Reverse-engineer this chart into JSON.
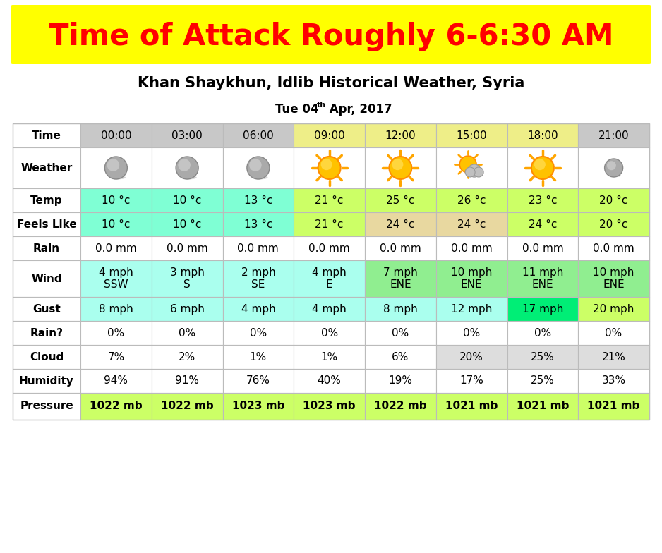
{
  "title": "Time of Attack Roughly 6-6:30 AM",
  "subtitle": "Khan Shaykhun, Idlib Historical Weather, Syria",
  "title_color": "#FF0000",
  "title_bg": "#FFFF00",
  "rows": [
    {
      "label": "Time",
      "values": [
        "00:00",
        "03:00",
        "06:00",
        "09:00",
        "12:00",
        "15:00",
        "18:00",
        "21:00"
      ],
      "bg": [
        "#C8C8C8",
        "#C8C8C8",
        "#C8C8C8",
        "#EEEE88",
        "#EEEE88",
        "#EEEE88",
        "#EEEE88",
        "#C8C8C8"
      ],
      "is_time": true
    },
    {
      "label": "Weather",
      "values": [
        "gray_moon",
        "gray_moon",
        "gray_moon",
        "orange_sun",
        "orange_sun",
        "sun_cloud",
        "orange_sun",
        "gray_moon_sm"
      ],
      "bg": [
        "#FFFFFF",
        "#FFFFFF",
        "#FFFFFF",
        "#FFFFFF",
        "#FFFFFF",
        "#FFFFFF",
        "#FFFFFF",
        "#FFFFFF"
      ],
      "is_weather": true
    },
    {
      "label": "Temp",
      "values": [
        "10 °c",
        "10 °c",
        "13 °c",
        "21 °c",
        "25 °c",
        "26 °c",
        "23 °c",
        "20 °c"
      ],
      "bg": [
        "#7FFFD4",
        "#7FFFD4",
        "#7FFFD4",
        "#CCFF66",
        "#CCFF66",
        "#CCFF66",
        "#CCFF66",
        "#CCFF66"
      ]
    },
    {
      "label": "Feels Like",
      "values": [
        "10 °c",
        "10 °c",
        "13 °c",
        "21 °c",
        "24 °c",
        "24 °c",
        "24 °c",
        "20 °c"
      ],
      "bg": [
        "#7FFFD4",
        "#7FFFD4",
        "#7FFFD4",
        "#CCFF66",
        "#E8D8A0",
        "#E8D8A0",
        "#CCFF66",
        "#CCFF66"
      ]
    },
    {
      "label": "Rain",
      "values": [
        "0.0 mm",
        "0.0 mm",
        "0.0 mm",
        "0.0 mm",
        "0.0 mm",
        "0.0 mm",
        "0.0 mm",
        "0.0 mm"
      ],
      "bg": [
        "#FFFFFF",
        "#FFFFFF",
        "#FFFFFF",
        "#FFFFFF",
        "#FFFFFF",
        "#FFFFFF",
        "#FFFFFF",
        "#FFFFFF"
      ]
    },
    {
      "label": "Wind",
      "values": [
        "4 mph\nSSW",
        "3 mph\nS",
        "2 mph\nSE",
        "4 mph\nE",
        "7 mph\nENE",
        "10 mph\nENE",
        "11 mph\nENE",
        "10 mph\nENE"
      ],
      "bg": [
        "#AAFFEE",
        "#AAFFEE",
        "#AAFFEE",
        "#AAFFEE",
        "#90EE90",
        "#90EE90",
        "#90EE90",
        "#90EE90"
      ]
    },
    {
      "label": "Gust",
      "values": [
        "8 mph",
        "6 mph",
        "4 mph",
        "4 mph",
        "8 mph",
        "12 mph",
        "17 mph",
        "20 mph"
      ],
      "bg": [
        "#AAFFEE",
        "#AAFFEE",
        "#AAFFEE",
        "#AAFFEE",
        "#AAFFEE",
        "#AAFFEE",
        "#00EE76",
        "#CCFF66"
      ]
    },
    {
      "label": "Rain?",
      "values": [
        "0%",
        "0%",
        "0%",
        "0%",
        "0%",
        "0%",
        "0%",
        "0%"
      ],
      "bg": [
        "#FFFFFF",
        "#FFFFFF",
        "#FFFFFF",
        "#FFFFFF",
        "#FFFFFF",
        "#FFFFFF",
        "#FFFFFF",
        "#FFFFFF"
      ]
    },
    {
      "label": "Cloud",
      "values": [
        "7%",
        "2%",
        "1%",
        "1%",
        "6%",
        "20%",
        "25%",
        "21%"
      ],
      "bg": [
        "#FFFFFF",
        "#FFFFFF",
        "#FFFFFF",
        "#FFFFFF",
        "#FFFFFF",
        "#DDDDDD",
        "#DDDDDD",
        "#DDDDDD"
      ]
    },
    {
      "label": "Humidity",
      "values": [
        "94%",
        "91%",
        "76%",
        "40%",
        "19%",
        "17%",
        "25%",
        "33%"
      ],
      "bg": [
        "#FFFFFF",
        "#FFFFFF",
        "#FFFFFF",
        "#FFFFFF",
        "#FFFFFF",
        "#FFFFFF",
        "#FFFFFF",
        "#FFFFFF"
      ]
    },
    {
      "label": "Pressure",
      "values": [
        "1022 mb",
        "1022 mb",
        "1023 mb",
        "1023 mb",
        "1022 mb",
        "1021 mb",
        "1021 mb",
        "1021 mb"
      ],
      "bg": [
        "#CCFF66",
        "#CCFF66",
        "#CCFF66",
        "#CCFF66",
        "#CCFF66",
        "#CCFF66",
        "#CCFF66",
        "#CCFF66"
      ],
      "bold": true
    }
  ]
}
